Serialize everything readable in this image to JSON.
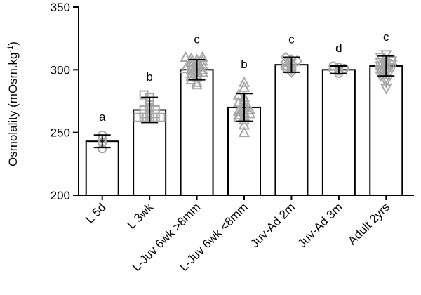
{
  "chart_data": {
    "type": "bar",
    "title": "",
    "ylabel": "Osmolality (mOsm.kg",
    "ylabel_sup": "-1",
    "ylabel_close": ")",
    "ylim": [
      200,
      350
    ],
    "yticks": [
      200,
      250,
      300,
      350
    ],
    "categories": [
      "L 5d",
      "L 3wk",
      "L-Juv 6wk >8mm",
      "L-Juv 6wk <8mm",
      "Juv-Ad 2m",
      "Juv-Ad 3m",
      "Adult 2yrs"
    ],
    "values": [
      243,
      268,
      300,
      270,
      304,
      300,
      303
    ],
    "errors": [
      5,
      10,
      8,
      11,
      6,
      3,
      8
    ],
    "significance_letters": [
      "a",
      "b",
      "c",
      "b",
      "c",
      "d",
      "c"
    ],
    "markers": [
      "circle",
      "square",
      "triangle-up",
      "triangle-up",
      "diamond",
      "circle",
      "triangle-down"
    ],
    "marker_color": "#a6a6a6",
    "points": [
      [
        237,
        242,
        245,
        248
      ],
      [
        262,
        262,
        262,
        262,
        262,
        262,
        265,
        265,
        265,
        268,
        268,
        268,
        270,
        275,
        278,
        280
      ],
      [
        288,
        290,
        292,
        294,
        295,
        296,
        297,
        298,
        299,
        300,
        300,
        301,
        302,
        303,
        304,
        305,
        306,
        307,
        308,
        309,
        310,
        310
      ],
      [
        250,
        256,
        260,
        262,
        263,
        264,
        265,
        266,
        267,
        268,
        270,
        272,
        274,
        276,
        278,
        280,
        286,
        290
      ],
      [
        298,
        300,
        301,
        302,
        303,
        305,
        306,
        307,
        308,
        310
      ],
      [
        297,
        299,
        300,
        301,
        302,
        303
      ],
      [
        285,
        290,
        293,
        295,
        297,
        298,
        299,
        300,
        301,
        302,
        303,
        304,
        305,
        306,
        307,
        308,
        310,
        312
      ]
    ]
  }
}
